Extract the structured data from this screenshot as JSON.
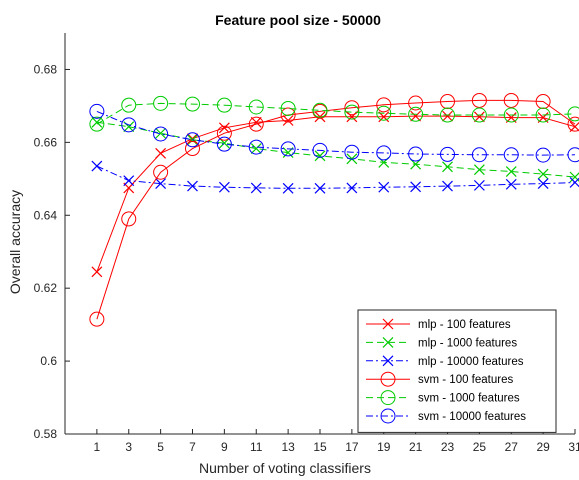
{
  "chart_data": {
    "type": "line",
    "title": "Feature pool size - 50000",
    "xlabel": "Number of voting classifiers",
    "ylabel": "Overall accuracy",
    "x": [
      1,
      3,
      5,
      7,
      9,
      11,
      13,
      15,
      17,
      19,
      21,
      23,
      25,
      27,
      29,
      31
    ],
    "xticks": [
      "1",
      "3",
      "5",
      "7",
      "9",
      "11",
      "13",
      "15",
      "17",
      "19",
      "21",
      "23",
      "25",
      "27",
      "29",
      "31"
    ],
    "xlim": [
      -1,
      31
    ],
    "ylim": [
      0.58,
      0.69
    ],
    "yticks": [
      0.58,
      0.6,
      0.62,
      0.64,
      0.66,
      0.68
    ],
    "ytick_labels": [
      "0.58",
      "0.6",
      "0.62",
      "0.64",
      "0.66",
      "0.68"
    ],
    "grid": false,
    "legend_position": "bottom-right",
    "series": [
      {
        "name": "mlp - 100 features",
        "color": "#ff0000",
        "dash": "solid",
        "marker": "x",
        "values": [
          0.6245,
          0.6475,
          0.657,
          0.661,
          0.664,
          0.6655,
          0.666,
          0.667,
          0.667,
          0.667,
          0.6672,
          0.6672,
          0.667,
          0.6668,
          0.6668,
          0.6643
        ]
      },
      {
        "name": "mlp - 1000 features",
        "color": "#00cc00",
        "dash": "dashed",
        "marker": "x",
        "values": [
          0.6655,
          0.6643,
          0.6625,
          0.6607,
          0.6598,
          0.6583,
          0.6572,
          0.6563,
          0.6555,
          0.6545,
          0.654,
          0.6533,
          0.6525,
          0.652,
          0.6513,
          0.6505
        ]
      },
      {
        "name": "mlp - 10000 features",
        "color": "#0000ff",
        "dash": "dashdot",
        "marker": "x",
        "values": [
          0.6535,
          0.6495,
          0.6487,
          0.648,
          0.6477,
          0.6475,
          0.6474,
          0.6474,
          0.6475,
          0.6477,
          0.6478,
          0.648,
          0.6482,
          0.6485,
          0.6487,
          0.649
        ]
      },
      {
        "name": "svm - 100 features",
        "color": "#ff0000",
        "dash": "solid",
        "marker": "o",
        "values": [
          0.6115,
          0.639,
          0.6518,
          0.6583,
          0.6625,
          0.665,
          0.6675,
          0.6685,
          0.6695,
          0.6703,
          0.6708,
          0.6712,
          0.6715,
          0.6715,
          0.6712,
          0.665
        ]
      },
      {
        "name": "svm - 1000 features",
        "color": "#00cc00",
        "dash": "dashed",
        "marker": "o",
        "values": [
          0.665,
          0.6702,
          0.6707,
          0.6705,
          0.6702,
          0.6697,
          0.6693,
          0.6688,
          0.6683,
          0.668,
          0.6677,
          0.6675,
          0.6675,
          0.6675,
          0.6675,
          0.6678
        ]
      },
      {
        "name": "svm - 10000 features",
        "color": "#0000ff",
        "dash": "dashdot",
        "marker": "o",
        "values": [
          0.6685,
          0.6648,
          0.6623,
          0.6607,
          0.6595,
          0.6587,
          0.6582,
          0.6578,
          0.6573,
          0.6571,
          0.6568,
          0.6567,
          0.6566,
          0.6566,
          0.6565,
          0.6566
        ]
      }
    ]
  }
}
